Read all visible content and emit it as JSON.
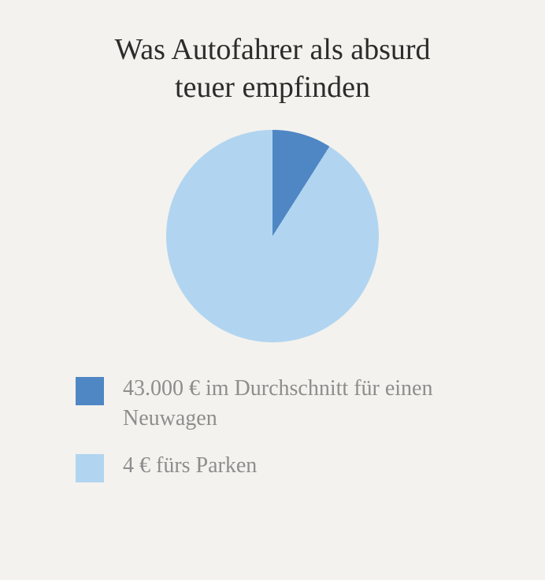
{
  "background_color": "#f4f2ee",
  "title": {
    "line1": "Was Autofahrer als absurd",
    "line2": "teuer empfinden",
    "color": "#2c2c2c",
    "fontsize": 38,
    "font_weight": "400"
  },
  "chart": {
    "type": "pie",
    "diameter": 270,
    "slices": [
      {
        "label_key": "legend.items.0.label",
        "value": 9,
        "color": "#4f87c5"
      },
      {
        "label_key": "legend.items.1.label",
        "value": 91,
        "color": "#b1d5f0"
      }
    ],
    "start_angle_deg": 0
  },
  "legend": {
    "swatch_size": 36,
    "label_color": "#8d8d8d",
    "label_fontsize": 28,
    "items": [
      {
        "label": "43.000 € im Durchschnitt für einen Neuwagen",
        "color": "#4f87c5"
      },
      {
        "label": "4 € fürs Parken",
        "color": "#b1d5f0"
      }
    ]
  }
}
